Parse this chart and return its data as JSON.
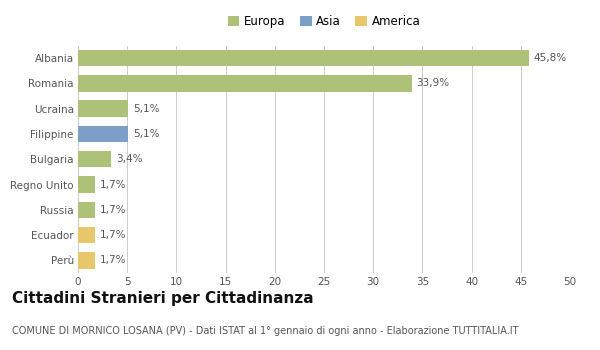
{
  "categories": [
    "Albania",
    "Romania",
    "Ucraina",
    "Filippine",
    "Bulgaria",
    "Regno Unito",
    "Russia",
    "Ecuador",
    "Perù"
  ],
  "values": [
    45.8,
    33.9,
    5.1,
    5.1,
    3.4,
    1.7,
    1.7,
    1.7,
    1.7
  ],
  "labels": [
    "45,8%",
    "33,9%",
    "5,1%",
    "5,1%",
    "3,4%",
    "1,7%",
    "1,7%",
    "1,7%",
    "1,7%"
  ],
  "bar_colors": [
    "#adc178",
    "#adc178",
    "#adc178",
    "#7b9fc7",
    "#adc178",
    "#adc178",
    "#adc178",
    "#e8c76a",
    "#e8c76a"
  ],
  "legend_labels": [
    "Europa",
    "Asia",
    "America"
  ],
  "legend_colors": [
    "#adc178",
    "#7b9fc7",
    "#e8c76a"
  ],
  "title": "Cittadini Stranieri per Cittadinanza",
  "subtitle": "COMUNE DI MORNICO LOSANA (PV) - Dati ISTAT al 1° gennaio di ogni anno - Elaborazione TUTTITALIA.IT",
  "xlim": [
    0,
    50
  ],
  "xticks": [
    0,
    5,
    10,
    15,
    20,
    25,
    30,
    35,
    40,
    45,
    50
  ],
  "background_color": "#ffffff",
  "grid_color": "#cccccc",
  "bar_height": 0.65,
  "title_fontsize": 11,
  "subtitle_fontsize": 7,
  "label_fontsize": 7.5,
  "tick_fontsize": 7.5,
  "legend_fontsize": 8.5
}
